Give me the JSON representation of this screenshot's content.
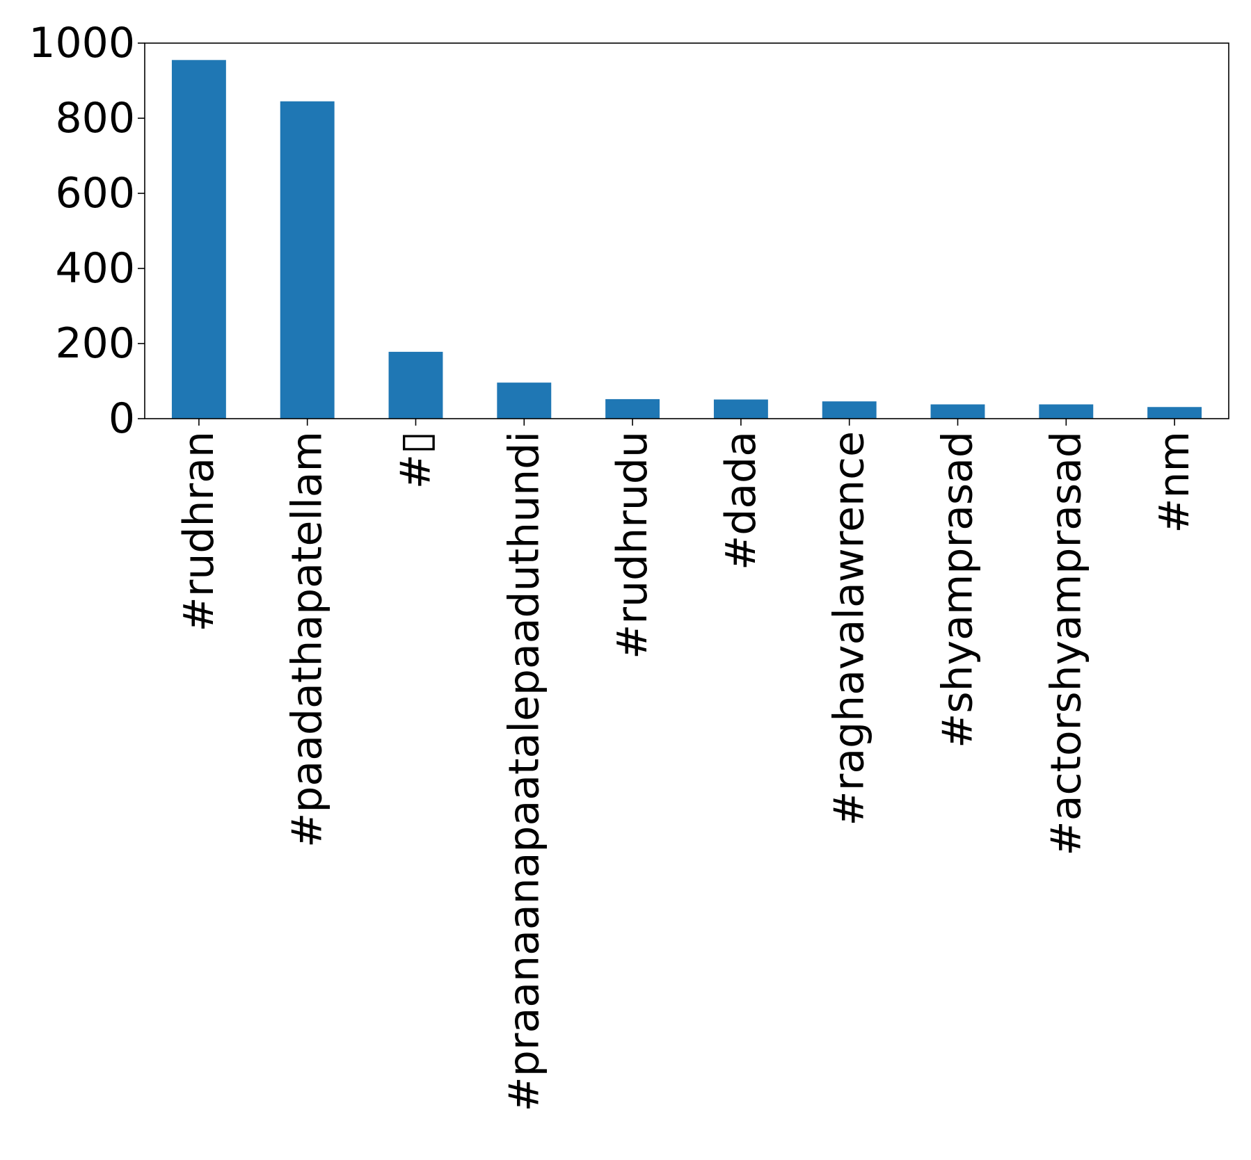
{
  "chart_data": {
    "type": "bar",
    "title": "",
    "xlabel": "",
    "ylabel": "",
    "categories": [
      "#rudhran",
      "#paadathapatellam",
      "#▯",
      "#praanaanapaatalepaaduthundi",
      "#rudhrudu",
      "#dada",
      "#raghavalawrence",
      "#shyamprasad",
      "#actorshyamprasad",
      "#nm"
    ],
    "values": [
      955,
      845,
      178,
      96,
      52,
      51,
      46,
      38,
      38,
      31
    ],
    "ylim": [
      0,
      1000
    ],
    "yticks": [
      "0",
      "200",
      "400",
      "600",
      "800",
      "1000"
    ],
    "grid": false,
    "legend": "none",
    "bar_color": "#1f77b4"
  }
}
